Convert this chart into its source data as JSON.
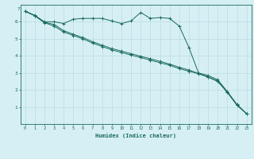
{
  "xlabel": "Humidex (Indice chaleur)",
  "ylabel": "",
  "bg_color": "#d6eff5",
  "grid_color": "#b8dde0",
  "line_color": "#1a6b5a",
  "xlim": [
    -0.5,
    23.5
  ],
  "ylim": [
    0,
    7
  ],
  "xticks": [
    0,
    1,
    2,
    3,
    4,
    5,
    6,
    7,
    8,
    9,
    10,
    11,
    12,
    13,
    14,
    15,
    16,
    17,
    18,
    19,
    20,
    21,
    22,
    23
  ],
  "yticks": [
    1,
    2,
    3,
    4,
    5,
    6
  ],
  "series1_x": [
    0,
    1,
    2,
    3,
    4,
    5,
    6,
    7,
    8,
    9,
    10,
    11,
    12,
    13,
    14,
    15,
    16,
    17,
    18,
    19,
    20,
    21,
    22,
    23
  ],
  "series1_y": [
    6.62,
    6.38,
    6.0,
    6.0,
    5.9,
    6.15,
    6.2,
    6.2,
    6.2,
    6.05,
    5.9,
    6.05,
    6.55,
    6.2,
    6.25,
    6.2,
    5.75,
    4.5,
    3.0,
    2.85,
    2.6,
    1.9,
    1.15,
    0.6
  ],
  "series2_x": [
    0,
    1,
    2,
    3,
    4,
    5,
    6,
    7,
    8,
    9,
    10,
    11,
    12,
    13,
    14,
    15,
    16,
    17,
    18,
    19,
    20,
    21,
    22,
    23
  ],
  "series2_y": [
    6.62,
    6.35,
    5.95,
    5.75,
    5.4,
    5.2,
    5.0,
    4.75,
    4.55,
    4.35,
    4.2,
    4.05,
    3.9,
    3.75,
    3.6,
    3.45,
    3.25,
    3.1,
    2.95,
    2.75,
    2.5,
    1.85,
    1.1,
    0.6
  ],
  "series3_x": [
    0,
    1,
    2,
    3,
    4,
    5,
    6,
    7,
    8,
    9,
    10,
    11,
    12,
    13,
    14,
    15,
    16,
    17,
    18,
    19,
    20,
    21,
    22,
    23
  ],
  "series3_y": [
    6.62,
    6.37,
    5.97,
    5.85,
    5.48,
    5.27,
    5.07,
    4.83,
    4.63,
    4.43,
    4.28,
    4.13,
    3.98,
    3.83,
    3.68,
    3.52,
    3.33,
    3.17,
    2.97,
    2.77,
    2.52,
    1.87,
    1.12,
    0.6
  ]
}
